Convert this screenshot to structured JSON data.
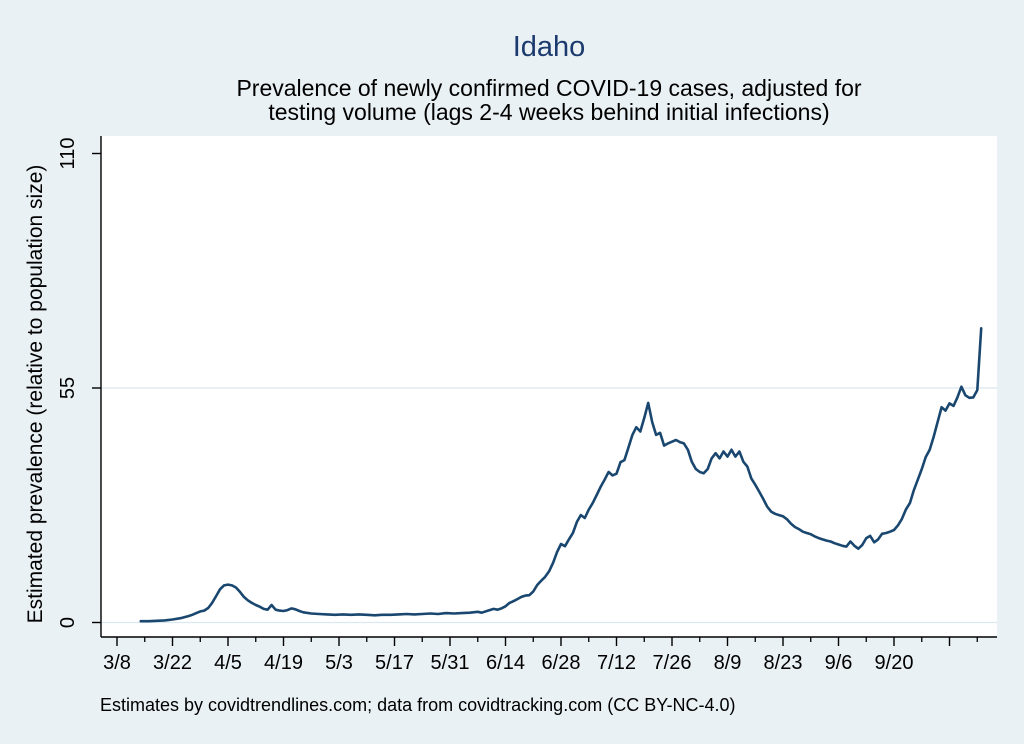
{
  "title": "Idaho",
  "subtitle_line1": "Prevalence of newly confirmed COVID-19 cases, adjusted for",
  "subtitle_line2": "testing volume (lags 2-4 weeks behind initial infections)",
  "ylabel": "Estimated prevalence (relative to population size)",
  "caption": "Estimates by covidtrendlines.com; data from covidtracking.com (CC BY-NC-4.0)",
  "colors": {
    "background": "#eaf1f4",
    "plot_background": "#ffffff",
    "line": "#1a476f",
    "title_text": "#1c3a6e",
    "grid": "#dbe8f0",
    "axis": "#000000"
  },
  "chart_data": {
    "type": "line",
    "title": "Idaho",
    "subtitle": "Prevalence of newly confirmed COVID-19 cases, adjusted for testing volume (lags 2-4 weeks behind initial infections)",
    "xlabel": "",
    "ylabel": "Estimated prevalence (relative to population size)",
    "y_ticks": [
      0,
      55,
      110
    ],
    "y_gridlines": [
      0,
      55
    ],
    "ylim": [
      0,
      110
    ],
    "grid": "horizontal-only",
    "legend": "none",
    "x_major_ticks": [
      "3/8",
      "3/22",
      "4/5",
      "4/19",
      "5/3",
      "5/17",
      "5/31",
      "6/14",
      "6/28",
      "7/12",
      "7/26",
      "8/9",
      "8/23",
      "9/6",
      "9/20"
    ],
    "x_major_ticks_unlabeled": [
      "10/4"
    ],
    "x_minor_ticks": [
      "3/15",
      "3/29",
      "4/12",
      "4/26",
      "5/10",
      "5/24",
      "6/7",
      "6/21",
      "7/5",
      "7/19",
      "8/2",
      "8/16",
      "8/30",
      "9/13",
      "9/27",
      "10/11"
    ],
    "series_name": "Estimated prevalence",
    "points": [
      [
        "3/14",
        0.3
      ],
      [
        "3/16",
        0.3
      ],
      [
        "3/18",
        0.4
      ],
      [
        "3/20",
        0.5
      ],
      [
        "3/22",
        0.7
      ],
      [
        "3/24",
        1.0
      ],
      [
        "3/26",
        1.5
      ],
      [
        "3/27",
        1.8
      ],
      [
        "3/28",
        2.2
      ],
      [
        "3/29",
        2.6
      ],
      [
        "3/30",
        2.8
      ],
      [
        "3/31",
        3.4
      ],
      [
        "4/1",
        4.6
      ],
      [
        "4/2",
        6.2
      ],
      [
        "4/3",
        7.8
      ],
      [
        "4/4",
        8.7
      ],
      [
        "4/5",
        8.9
      ],
      [
        "4/6",
        8.7
      ],
      [
        "4/7",
        8.2
      ],
      [
        "4/8",
        7.2
      ],
      [
        "4/9",
        6.0
      ],
      [
        "4/10",
        5.2
      ],
      [
        "4/11",
        4.6
      ],
      [
        "4/12",
        4.1
      ],
      [
        "4/13",
        3.7
      ],
      [
        "4/14",
        3.2
      ],
      [
        "4/15",
        3.0
      ],
      [
        "4/16",
        4.1
      ],
      [
        "4/17",
        3.0
      ],
      [
        "4/18",
        2.8
      ],
      [
        "4/19",
        2.7
      ],
      [
        "4/20",
        2.9
      ],
      [
        "4/21",
        3.3
      ],
      [
        "4/22",
        3.1
      ],
      [
        "4/23",
        2.7
      ],
      [
        "4/24",
        2.4
      ],
      [
        "4/26",
        2.1
      ],
      [
        "4/28",
        2.0
      ],
      [
        "4/30",
        1.9
      ],
      [
        "5/2",
        1.8
      ],
      [
        "5/4",
        1.9
      ],
      [
        "5/6",
        1.8
      ],
      [
        "5/8",
        1.9
      ],
      [
        "5/10",
        1.8
      ],
      [
        "5/12",
        1.7
      ],
      [
        "5/14",
        1.8
      ],
      [
        "5/16",
        1.8
      ],
      [
        "5/18",
        1.9
      ],
      [
        "5/20",
        2.0
      ],
      [
        "5/22",
        1.9
      ],
      [
        "5/24",
        2.0
      ],
      [
        "5/26",
        2.1
      ],
      [
        "5/28",
        2.0
      ],
      [
        "5/30",
        2.2
      ],
      [
        "6/1",
        2.1
      ],
      [
        "6/3",
        2.2
      ],
      [
        "6/5",
        2.3
      ],
      [
        "6/7",
        2.5
      ],
      [
        "6/8",
        2.3
      ],
      [
        "6/10",
        2.9
      ],
      [
        "6/11",
        3.2
      ],
      [
        "6/12",
        3.0
      ],
      [
        "6/13",
        3.3
      ],
      [
        "6/14",
        3.8
      ],
      [
        "6/15",
        4.6
      ],
      [
        "6/16",
        5.0
      ],
      [
        "6/17",
        5.5
      ],
      [
        "6/18",
        6.0
      ],
      [
        "6/19",
        6.3
      ],
      [
        "6/20",
        6.4
      ],
      [
        "6/21",
        7.3
      ],
      [
        "6/22",
        8.8
      ],
      [
        "6/23",
        9.8
      ],
      [
        "6/24",
        10.7
      ],
      [
        "6/25",
        12.0
      ],
      [
        "6/26",
        14.0
      ],
      [
        "6/27",
        16.5
      ],
      [
        "6/28",
        18.4
      ],
      [
        "6/29",
        17.9
      ],
      [
        "6/30",
        19.5
      ],
      [
        "7/1",
        21.0
      ],
      [
        "7/2",
        23.6
      ],
      [
        "7/3",
        25.2
      ],
      [
        "7/4",
        24.5
      ],
      [
        "7/5",
        26.5
      ],
      [
        "7/6",
        28.0
      ],
      [
        "7/7",
        29.9
      ],
      [
        "7/8",
        31.8
      ],
      [
        "7/9",
        33.5
      ],
      [
        "7/10",
        35.3
      ],
      [
        "7/11",
        34.5
      ],
      [
        "7/12",
        34.9
      ],
      [
        "7/13",
        37.6
      ],
      [
        "7/14",
        38.1
      ],
      [
        "7/15",
        41.0
      ],
      [
        "7/16",
        44.0
      ],
      [
        "7/17",
        45.8
      ],
      [
        "7/18",
        44.8
      ],
      [
        "7/19",
        48.0
      ],
      [
        "7/20",
        51.5
      ],
      [
        "7/21",
        47.0
      ],
      [
        "7/22",
        44.0
      ],
      [
        "7/23",
        44.5
      ],
      [
        "7/24",
        41.5
      ],
      [
        "7/25",
        42.0
      ],
      [
        "7/26",
        42.4
      ],
      [
        "7/27",
        42.8
      ],
      [
        "7/28",
        42.3
      ],
      [
        "7/29",
        42.0
      ],
      [
        "7/30",
        40.5
      ],
      [
        "7/31",
        37.7
      ],
      [
        "8/1",
        36.0
      ],
      [
        "8/2",
        35.3
      ],
      [
        "8/3",
        35.0
      ],
      [
        "8/4",
        36.0
      ],
      [
        "8/5",
        38.5
      ],
      [
        "8/6",
        39.7
      ],
      [
        "8/7",
        38.5
      ],
      [
        "8/8",
        40.1
      ],
      [
        "8/9",
        38.9
      ],
      [
        "8/10",
        40.5
      ],
      [
        "8/11",
        38.9
      ],
      [
        "8/12",
        40.1
      ],
      [
        "8/13",
        37.7
      ],
      [
        "8/14",
        36.6
      ],
      [
        "8/15",
        33.8
      ],
      [
        "8/16",
        32.3
      ],
      [
        "8/17",
        30.7
      ],
      [
        "8/18",
        29.0
      ],
      [
        "8/19",
        27.2
      ],
      [
        "8/20",
        26.0
      ],
      [
        "8/21",
        25.5
      ],
      [
        "8/22",
        25.2
      ],
      [
        "8/23",
        24.9
      ],
      [
        "8/24",
        24.2
      ],
      [
        "8/25",
        23.2
      ],
      [
        "8/26",
        22.4
      ],
      [
        "8/27",
        21.9
      ],
      [
        "8/28",
        21.3
      ],
      [
        "8/29",
        21.0
      ],
      [
        "8/30",
        20.7
      ],
      [
        "8/31",
        20.2
      ],
      [
        "9/1",
        19.8
      ],
      [
        "9/2",
        19.5
      ],
      [
        "9/3",
        19.2
      ],
      [
        "9/4",
        19.0
      ],
      [
        "9/5",
        18.6
      ],
      [
        "9/6",
        18.3
      ],
      [
        "9/7",
        18.0
      ],
      [
        "9/8",
        17.8
      ],
      [
        "9/9",
        19.0
      ],
      [
        "9/10",
        18.0
      ],
      [
        "9/11",
        17.3
      ],
      [
        "9/12",
        18.2
      ],
      [
        "9/13",
        19.8
      ],
      [
        "9/14",
        20.3
      ],
      [
        "9/15",
        18.8
      ],
      [
        "9/16",
        19.5
      ],
      [
        "9/17",
        20.8
      ],
      [
        "9/18",
        21.0
      ],
      [
        "9/19",
        21.3
      ],
      [
        "9/20",
        21.7
      ],
      [
        "9/21",
        22.8
      ],
      [
        "9/22",
        24.3
      ],
      [
        "9/23",
        26.5
      ],
      [
        "9/24",
        28.0
      ],
      [
        "9/25",
        31.0
      ],
      [
        "9/26",
        33.5
      ],
      [
        "9/27",
        36.0
      ],
      [
        "9/28",
        38.8
      ],
      [
        "9/29",
        40.5
      ],
      [
        "9/30",
        43.5
      ],
      [
        "10/1",
        47.0
      ],
      [
        "10/2",
        50.5
      ],
      [
        "10/3",
        49.7
      ],
      [
        "10/4",
        51.4
      ],
      [
        "10/5",
        50.8
      ],
      [
        "10/6",
        52.8
      ],
      [
        "10/7",
        55.3
      ],
      [
        "10/8",
        53.3
      ],
      [
        "10/9",
        52.7
      ],
      [
        "10/10",
        52.8
      ],
      [
        "10/11",
        54.5
      ],
      [
        "10/12",
        69.0
      ]
    ]
  }
}
